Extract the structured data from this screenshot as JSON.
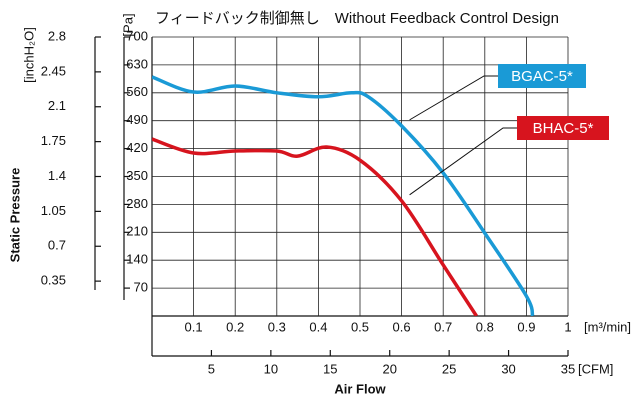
{
  "chart_data": {
    "type": "line",
    "title": "フィードバック制御無し　Without Feedback Control Design",
    "x_label": "Air Flow",
    "y_label": "Static Pressure",
    "x_unit": "[m³/min]",
    "x2_unit": "[CFM]",
    "y_unit": "[Pa]",
    "y2_unit": "[inchH₂O]",
    "xlim": [
      0,
      1
    ],
    "xticks": [
      0.1,
      0.2,
      0.3,
      0.4,
      0.5,
      0.6,
      0.7,
      0.8,
      0.9,
      1
    ],
    "x2lim": [
      0,
      35
    ],
    "x2ticks": [
      5,
      10,
      15,
      20,
      25,
      30,
      35
    ],
    "ylim": [
      0,
      700
    ],
    "yticks": [
      70,
      140,
      210,
      280,
      350,
      420,
      490,
      560,
      630,
      700
    ],
    "y2lim": [
      0,
      2.8
    ],
    "y2ticks": [
      0.35,
      0.7,
      1.05,
      1.4,
      1.75,
      2.1,
      2.45,
      2.8
    ],
    "grid": true,
    "series": [
      {
        "name": "BGAC-5*",
        "color": "#1a9ad6",
        "x": [
          0,
          0.1,
          0.2,
          0.3,
          0.4,
          0.48,
          0.52,
          0.6,
          0.7,
          0.8,
          0.9,
          0.915
        ],
        "values": [
          600,
          562,
          577,
          560,
          550,
          560,
          550,
          477,
          359,
          208,
          50,
          0
        ]
      },
      {
        "name": "BHAC-5*",
        "color": "#d7141e",
        "x": [
          0,
          0.1,
          0.2,
          0.3,
          0.35,
          0.42,
          0.5,
          0.6,
          0.7,
          0.78
        ],
        "values": [
          444,
          409,
          414,
          414,
          401,
          424,
          391,
          289,
          128,
          0
        ]
      }
    ]
  }
}
